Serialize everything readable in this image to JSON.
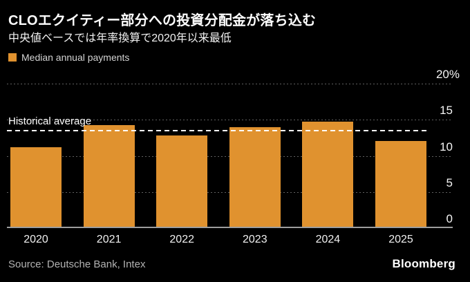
{
  "header": {
    "title": "CLOエクイティー部分への投資分配金が落ち込む",
    "subtitle": "中央値ベースでは年率換算で2020年以来最低"
  },
  "legend": {
    "label": "Median annual payments",
    "swatch_color": "#E0922F"
  },
  "chart_data": {
    "type": "bar",
    "title": "CLOエクイティー部分への投資分配金が落ち込む",
    "subtitle": "中央値ベースでは年率換算で2020年以来最低",
    "series_name": "Median annual payments",
    "categories": [
      "2020",
      "2021",
      "2022",
      "2023",
      "2024",
      "2025"
    ],
    "values": [
      11.2,
      14.3,
      12.8,
      14.0,
      14.7,
      12.1
    ],
    "unit": "%",
    "ylim": [
      0,
      20
    ],
    "yticks": [
      {
        "value": 20,
        "label": "20%"
      },
      {
        "value": 15,
        "label": "15"
      },
      {
        "value": 10,
        "label": "10"
      },
      {
        "value": 5,
        "label": "5"
      },
      {
        "value": 0,
        "label": "0"
      }
    ],
    "average_line": {
      "label": "Historical average",
      "value": 13.5
    },
    "bar_color": "#E0922F",
    "background_color": "#000000",
    "grid": "horizontal-dotted",
    "legend_position": "top-left",
    "ytick_side": "right"
  },
  "footer": {
    "source": "Source: Deutsche Bank, Intex",
    "brand": "Bloomberg"
  }
}
